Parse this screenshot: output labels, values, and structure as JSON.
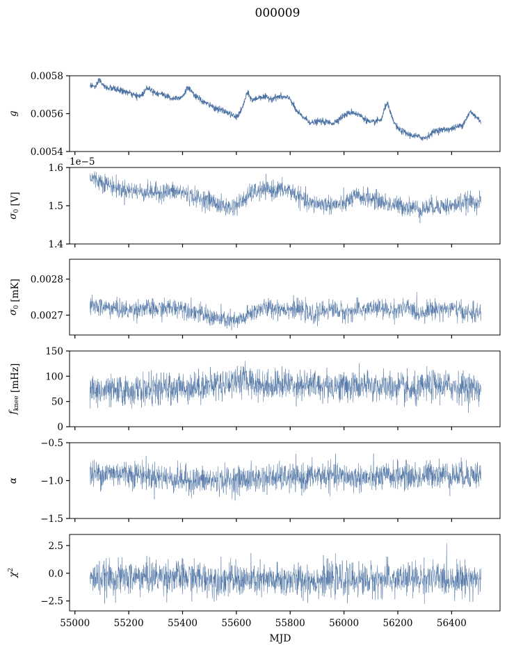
{
  "title": "000009",
  "colors": {
    "series": "#4c72a4"
  },
  "chart_data": [
    {
      "type": "line",
      "ylabel_parts": [
        {
          "t": "g",
          "style": "italic"
        }
      ],
      "ylim": [
        0.0054,
        0.0058
      ],
      "yticks": [
        0.0054,
        0.0056,
        0.0058
      ],
      "ytick_labels": [
        "0.0054",
        "0.0056",
        "0.0058"
      ],
      "x_range": [
        55056,
        56509
      ],
      "xlim": [
        54980,
        56580
      ],
      "noise": 8e-06,
      "stroke_width": 0.9,
      "knots": [
        [
          55056,
          0.00575
        ],
        [
          55080,
          0.00574
        ],
        [
          55090,
          0.00578
        ],
        [
          55110,
          0.00574
        ],
        [
          55150,
          0.00573
        ],
        [
          55200,
          0.00571
        ],
        [
          55230,
          0.00569
        ],
        [
          55250,
          0.0057
        ],
        [
          55270,
          0.00574
        ],
        [
          55300,
          0.00571
        ],
        [
          55330,
          0.0057
        ],
        [
          55360,
          0.00568
        ],
        [
          55400,
          0.00569
        ],
        [
          55420,
          0.00574
        ],
        [
          55440,
          0.0057
        ],
        [
          55480,
          0.00566
        ],
        [
          55520,
          0.00563
        ],
        [
          55560,
          0.00561
        ],
        [
          55600,
          0.00558
        ],
        [
          55620,
          0.00562
        ],
        [
          55640,
          0.00571
        ],
        [
          55660,
          0.00567
        ],
        [
          55690,
          0.00569
        ],
        [
          55730,
          0.00568
        ],
        [
          55760,
          0.00569
        ],
        [
          55800,
          0.00568
        ],
        [
          55820,
          0.00562
        ],
        [
          55840,
          0.00559
        ],
        [
          55880,
          0.00555
        ],
        [
          55910,
          0.00556
        ],
        [
          55960,
          0.00555
        ],
        [
          56000,
          0.00559
        ],
        [
          56030,
          0.00561
        ],
        [
          56060,
          0.00559
        ],
        [
          56100,
          0.00555
        ],
        [
          56140,
          0.00557
        ],
        [
          56150,
          0.00562
        ],
        [
          56160,
          0.00566
        ],
        [
          56180,
          0.00557
        ],
        [
          56200,
          0.00552
        ],
        [
          56240,
          0.00549
        ],
        [
          56300,
          0.00547
        ],
        [
          56340,
          0.00551
        ],
        [
          56400,
          0.00552
        ],
        [
          56440,
          0.00554
        ],
        [
          56470,
          0.00561
        ],
        [
          56509,
          0.00556
        ]
      ]
    },
    {
      "type": "line",
      "ylabel_parts": [
        {
          "t": "σ",
          "style": "italic"
        },
        {
          "t": "0",
          "style": "sub"
        },
        {
          "t": " [V]",
          "style": "normal"
        }
      ],
      "ylim": [
        1.4,
        1.6
      ],
      "yticks": [
        1.4,
        1.5,
        1.6
      ],
      "ytick_labels": [
        "1.4",
        "1.5",
        "1.6"
      ],
      "offset_text": "1e−5",
      "x_range": [
        55056,
        56509
      ],
      "xlim": [
        54980,
        56580
      ],
      "noise": 0.012,
      "stroke_width": 0.5,
      "knots": [
        [
          55056,
          1.573
        ],
        [
          55100,
          1.563
        ],
        [
          55150,
          1.548
        ],
        [
          55200,
          1.54
        ],
        [
          55250,
          1.537
        ],
        [
          55300,
          1.535
        ],
        [
          55350,
          1.537
        ],
        [
          55400,
          1.535
        ],
        [
          55450,
          1.52
        ],
        [
          55500,
          1.515
        ],
        [
          55540,
          1.5
        ],
        [
          55580,
          1.495
        ],
        [
          55620,
          1.51
        ],
        [
          55660,
          1.535
        ],
        [
          55700,
          1.54
        ],
        [
          55750,
          1.542
        ],
        [
          55800,
          1.54
        ],
        [
          55840,
          1.52
        ],
        [
          55870,
          1.505
        ],
        [
          55920,
          1.505
        ],
        [
          55960,
          1.502
        ],
        [
          56000,
          1.505
        ],
        [
          56040,
          1.523
        ],
        [
          56080,
          1.522
        ],
        [
          56120,
          1.515
        ],
        [
          56160,
          1.505
        ],
        [
          56200,
          1.5
        ],
        [
          56250,
          1.497
        ],
        [
          56290,
          1.49
        ],
        [
          56320,
          1.498
        ],
        [
          56360,
          1.5
        ],
        [
          56400,
          1.498
        ],
        [
          56450,
          1.51
        ],
        [
          56509,
          1.51
        ]
      ]
    },
    {
      "type": "line",
      "ylabel_parts": [
        {
          "t": "σ",
          "style": "italic"
        },
        {
          "t": "0",
          "style": "sub"
        },
        {
          "t": " [mK]",
          "style": "normal"
        }
      ],
      "ylim": [
        0.002645,
        0.002855
      ],
      "yticks": [
        0.0027,
        0.0028
      ],
      "ytick_labels": [
        "0.0027",
        "0.0028"
      ],
      "x_range": [
        55056,
        56509
      ],
      "xlim": [
        54980,
        56580
      ],
      "noise": 1.3e-05,
      "stroke_width": 0.5,
      "knots": [
        [
          55056,
          0.002725
        ],
        [
          55100,
          0.002723
        ],
        [
          55150,
          0.002718
        ],
        [
          55200,
          0.002712
        ],
        [
          55250,
          0.00272
        ],
        [
          55300,
          0.002716
        ],
        [
          55400,
          0.002722
        ],
        [
          55450,
          0.002708
        ],
        [
          55500,
          0.002695
        ],
        [
          55560,
          0.002686
        ],
        [
          55600,
          0.002682
        ],
        [
          55620,
          0.002688
        ],
        [
          55660,
          0.002708
        ],
        [
          55700,
          0.00272
        ],
        [
          55800,
          0.002718
        ],
        [
          55850,
          0.002712
        ],
        [
          55880,
          0.002698
        ],
        [
          55920,
          0.002712
        ],
        [
          55960,
          0.002718
        ],
        [
          56000,
          0.002706
        ],
        [
          56060,
          0.002715
        ],
        [
          56120,
          0.00272
        ],
        [
          56180,
          0.002712
        ],
        [
          56240,
          0.00272
        ],
        [
          56280,
          0.002705
        ],
        [
          56320,
          0.002716
        ],
        [
          56400,
          0.002718
        ],
        [
          56460,
          0.002705
        ],
        [
          56509,
          0.002705
        ]
      ]
    },
    {
      "type": "line",
      "ylabel_parts": [
        {
          "t": "f",
          "style": "italic"
        },
        {
          "t": "knee",
          "style": "sub"
        },
        {
          "t": " [mHz]",
          "style": "normal"
        }
      ],
      "ylim": [
        0,
        150
      ],
      "yticks": [
        0,
        50,
        100,
        150
      ],
      "ytick_labels": [
        "0",
        "50",
        "100",
        "150"
      ],
      "x_range": [
        55056,
        56509
      ],
      "xlim": [
        54980,
        56580
      ],
      "noise": 15,
      "stroke_width": 0.5,
      "knots": [
        [
          55056,
          72
        ],
        [
          55150,
          70
        ],
        [
          55250,
          72
        ],
        [
          55350,
          75
        ],
        [
          55450,
          80
        ],
        [
          55550,
          85
        ],
        [
          55620,
          95
        ],
        [
          55700,
          82
        ],
        [
          55800,
          85
        ],
        [
          55900,
          82
        ],
        [
          56000,
          80
        ],
        [
          56100,
          80
        ],
        [
          56200,
          78
        ],
        [
          56270,
          68
        ],
        [
          56300,
          80
        ],
        [
          56330,
          82
        ],
        [
          56400,
          80
        ],
        [
          56509,
          75
        ]
      ]
    },
    {
      "type": "line",
      "ylabel_parts": [
        {
          "t": "α",
          "style": "italic"
        }
      ],
      "ylim": [
        -1.5,
        -0.5
      ],
      "yticks": [
        -1.5,
        -1.0,
        -0.5
      ],
      "ytick_labels": [
        "−1.5",
        "−1.0",
        "−0.5"
      ],
      "x_range": [
        55056,
        56509
      ],
      "xlim": [
        54980,
        56580
      ],
      "noise": 0.09,
      "stroke_width": 0.5,
      "knots": [
        [
          55056,
          -0.92
        ],
        [
          55150,
          -0.9
        ],
        [
          55250,
          -0.92
        ],
        [
          55350,
          -0.97
        ],
        [
          55450,
          -1.0
        ],
        [
          55550,
          -1.0
        ],
        [
          55650,
          -0.98
        ],
        [
          55750,
          -0.96
        ],
        [
          55850,
          -0.97
        ],
        [
          55900,
          -0.93
        ],
        [
          56000,
          -0.95
        ],
        [
          56100,
          -0.97
        ],
        [
          56200,
          -0.93
        ],
        [
          56280,
          -0.96
        ],
        [
          56330,
          -0.9
        ],
        [
          56400,
          -0.93
        ],
        [
          56509,
          -0.92
        ]
      ]
    },
    {
      "type": "line",
      "ylabel_parts": [
        {
          "t": "χ",
          "style": "italic"
        },
        {
          "t": "2",
          "style": "sup"
        }
      ],
      "ylim": [
        -3.4,
        3.5
      ],
      "yticks": [
        -2.5,
        0.0,
        2.5
      ],
      "ytick_labels": [
        "−2.5",
        "0.0",
        "2.5"
      ],
      "x_range": [
        55056,
        56509
      ],
      "xlim": [
        54980,
        56580
      ],
      "noise": 0.75,
      "stroke_width": 0.5,
      "knots": [
        [
          55056,
          -0.5
        ],
        [
          55200,
          -0.4
        ],
        [
          55350,
          -0.3
        ],
        [
          55500,
          -0.5
        ],
        [
          55700,
          -0.7
        ],
        [
          55900,
          -0.6
        ],
        [
          56100,
          -0.6
        ],
        [
          56300,
          -0.5
        ],
        [
          56509,
          -0.5
        ]
      ],
      "xticks": [
        55000,
        55200,
        55400,
        55600,
        55800,
        56000,
        56200,
        56400
      ],
      "xtick_labels": [
        "55000",
        "55200",
        "55400",
        "55600",
        "55800",
        "56000",
        "56200",
        "56400"
      ],
      "xlabel": "MJD"
    }
  ]
}
